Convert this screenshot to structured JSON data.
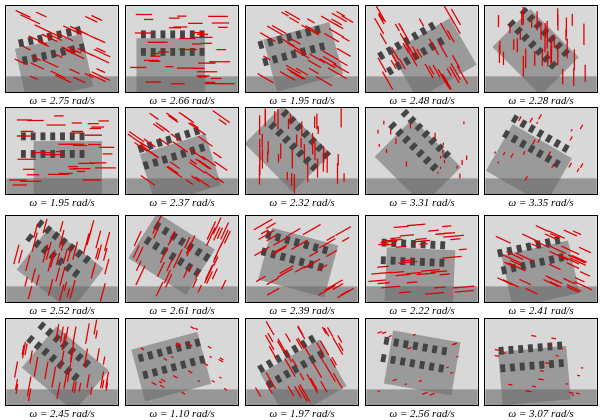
{
  "figure": {
    "captions": [
      [
        "ω = 2.75 rad/s",
        "ω = 2.66 rad/s",
        "ω = 1.95 rad/s",
        "ω = 2.48 rad/s",
        "ω = 2.28 rad/s"
      ],
      [
        "ω = 1.95 rad/s",
        "ω = 2.37 rad/s",
        "ω = 2.32 rad/s",
        "ω = 3.31 rad/s",
        "ω = 3.35 rad/s"
      ],
      [
        "ω = 2.52 rad/s",
        "ω = 2.61 rad/s",
        "ω = 2.39 rad/s",
        "ω = 2.22 rad/s",
        "ω = 2.41 rad/s"
      ],
      [
        "ω = 2.45 rad/s",
        "ω = 1.10 rad/s",
        "ω = 1.97 rad/s",
        "ω = 2.56 rad/s",
        "ω = 3.07 rad/s"
      ]
    ]
  }
}
